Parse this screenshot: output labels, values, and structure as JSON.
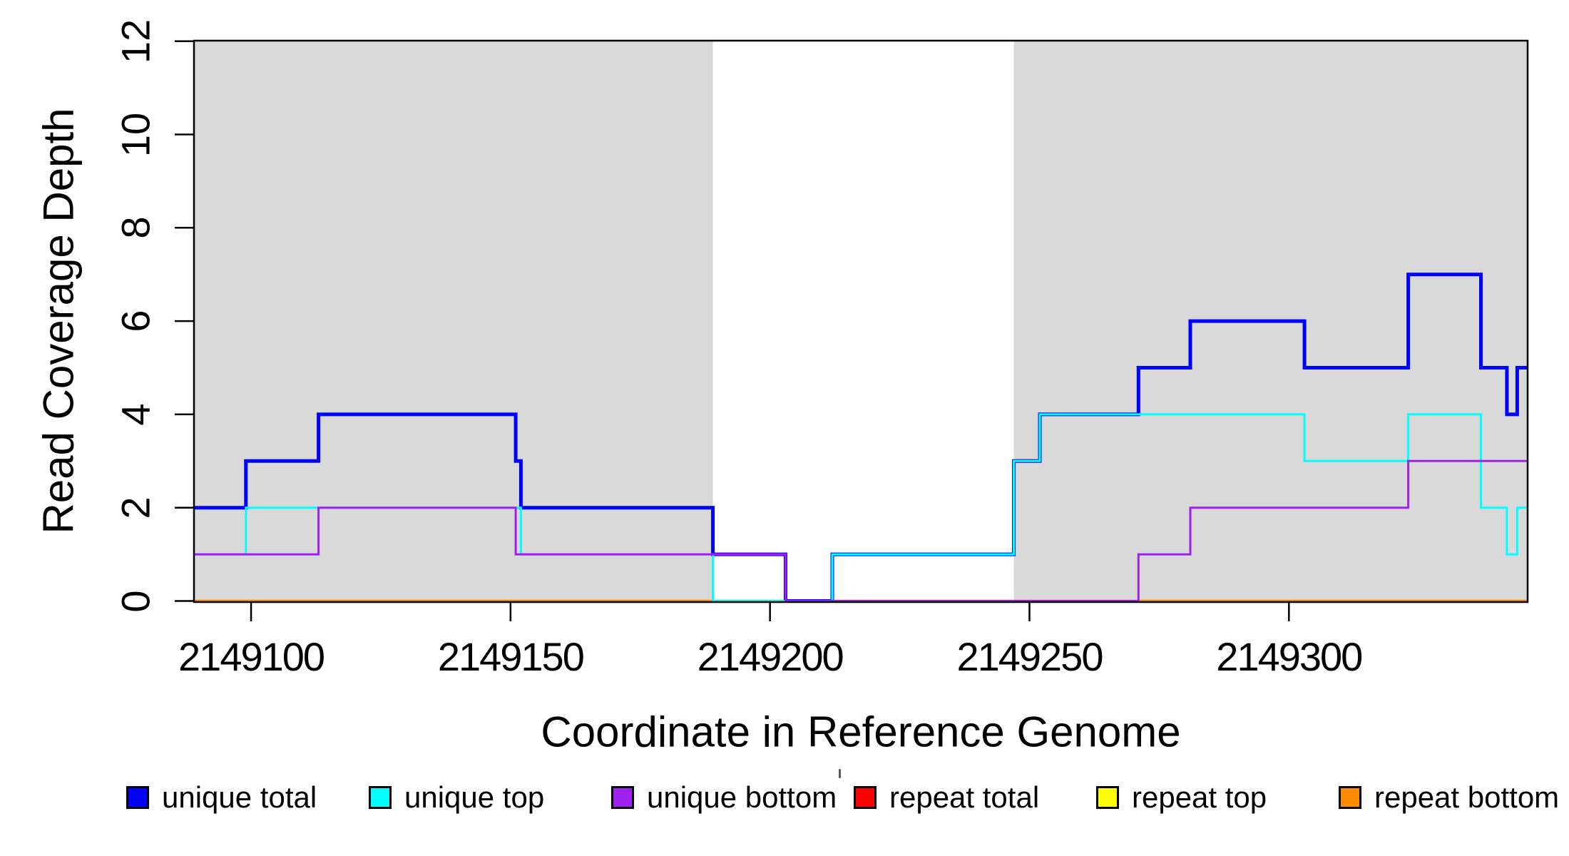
{
  "chart_data": {
    "type": "line",
    "subtype": "step-coverage",
    "title": "",
    "xlabel": "Coordinate in Reference Genome",
    "ylabel": "Read Coverage Depth",
    "xlim": [
      2149089,
      2149346
    ],
    "ylim": [
      0,
      12
    ],
    "x_ticks": [
      2149100,
      2149150,
      2149200,
      2149250,
      2149300
    ],
    "y_ticks": [
      0,
      2,
      4,
      6,
      8,
      10,
      12
    ],
    "grid": false,
    "background_color": "#FFFFFF",
    "shaded_region_color": "#D9D9D9",
    "shaded_regions": [
      {
        "x0": 2149089,
        "x1": 2149189
      },
      {
        "x0": 2149247,
        "x1": 2149346
      }
    ],
    "series": [
      {
        "name": "unique total",
        "color": "#0000FF",
        "line_width": 5,
        "x_start": 2149089,
        "x_end": 2149346,
        "initial_value": 2,
        "steps": [
          [
            2149099,
            3
          ],
          [
            2149113,
            4
          ],
          [
            2149151,
            3
          ],
          [
            2149152,
            2
          ],
          [
            2149189,
            1
          ],
          [
            2149203,
            0
          ],
          [
            2149212,
            1
          ],
          [
            2149247,
            3
          ],
          [
            2149252,
            4
          ],
          [
            2149271,
            5
          ],
          [
            2149281,
            6
          ],
          [
            2149303,
            5
          ],
          [
            2149323,
            7
          ],
          [
            2149337,
            5
          ],
          [
            2149342,
            4
          ],
          [
            2149344,
            5
          ]
        ]
      },
      {
        "name": "unique top",
        "color": "#00FFFF",
        "line_width": 3,
        "x_start": 2149089,
        "x_end": 2149346,
        "initial_value": 1,
        "steps": [
          [
            2149099,
            2
          ],
          [
            2149152,
            1
          ],
          [
            2149189,
            0
          ],
          [
            2149212,
            1
          ],
          [
            2149247,
            3
          ],
          [
            2149252,
            4
          ],
          [
            2149303,
            3
          ],
          [
            2149323,
            4
          ],
          [
            2149337,
            2
          ],
          [
            2149342,
            1
          ],
          [
            2149344,
            2
          ]
        ]
      },
      {
        "name": "unique bottom",
        "color": "#A020F0",
        "line_width": 3,
        "x_start": 2149089,
        "x_end": 2149346,
        "initial_value": 1,
        "steps": [
          [
            2149113,
            2
          ],
          [
            2149151,
            1
          ],
          [
            2149203,
            0
          ],
          [
            2149271,
            1
          ],
          [
            2149281,
            2
          ],
          [
            2149323,
            3
          ]
        ]
      },
      {
        "name": "repeat total",
        "color": "#FF0000",
        "line_width": 3,
        "x_start": 2149089,
        "x_end": 2149346,
        "initial_value": 0,
        "steps": []
      },
      {
        "name": "repeat top",
        "color": "#FFFF00",
        "line_width": 3,
        "x_start": 2149089,
        "x_end": 2149346,
        "initial_value": 0,
        "steps": []
      },
      {
        "name": "repeat bottom",
        "color": "#FF8C00",
        "line_width": 3.5,
        "x_start": 2149089,
        "x_end": 2149346,
        "initial_value": 0,
        "steps": []
      }
    ],
    "draw_order": [
      3,
      4,
      5,
      0,
      1,
      2
    ],
    "legend": {
      "position": "bottom",
      "entries": [
        {
          "label": "unique total",
          "color": "#0000FF"
        },
        {
          "label": "unique top",
          "color": "#00FFFF"
        },
        {
          "label": "unique bottom",
          "color": "#A020F0"
        },
        {
          "label": "repeat total",
          "color": "#FF0000"
        },
        {
          "label": "repeat top",
          "color": "#FFFF00"
        },
        {
          "label": "repeat bottom",
          "color": "#FF8C00"
        }
      ]
    }
  }
}
